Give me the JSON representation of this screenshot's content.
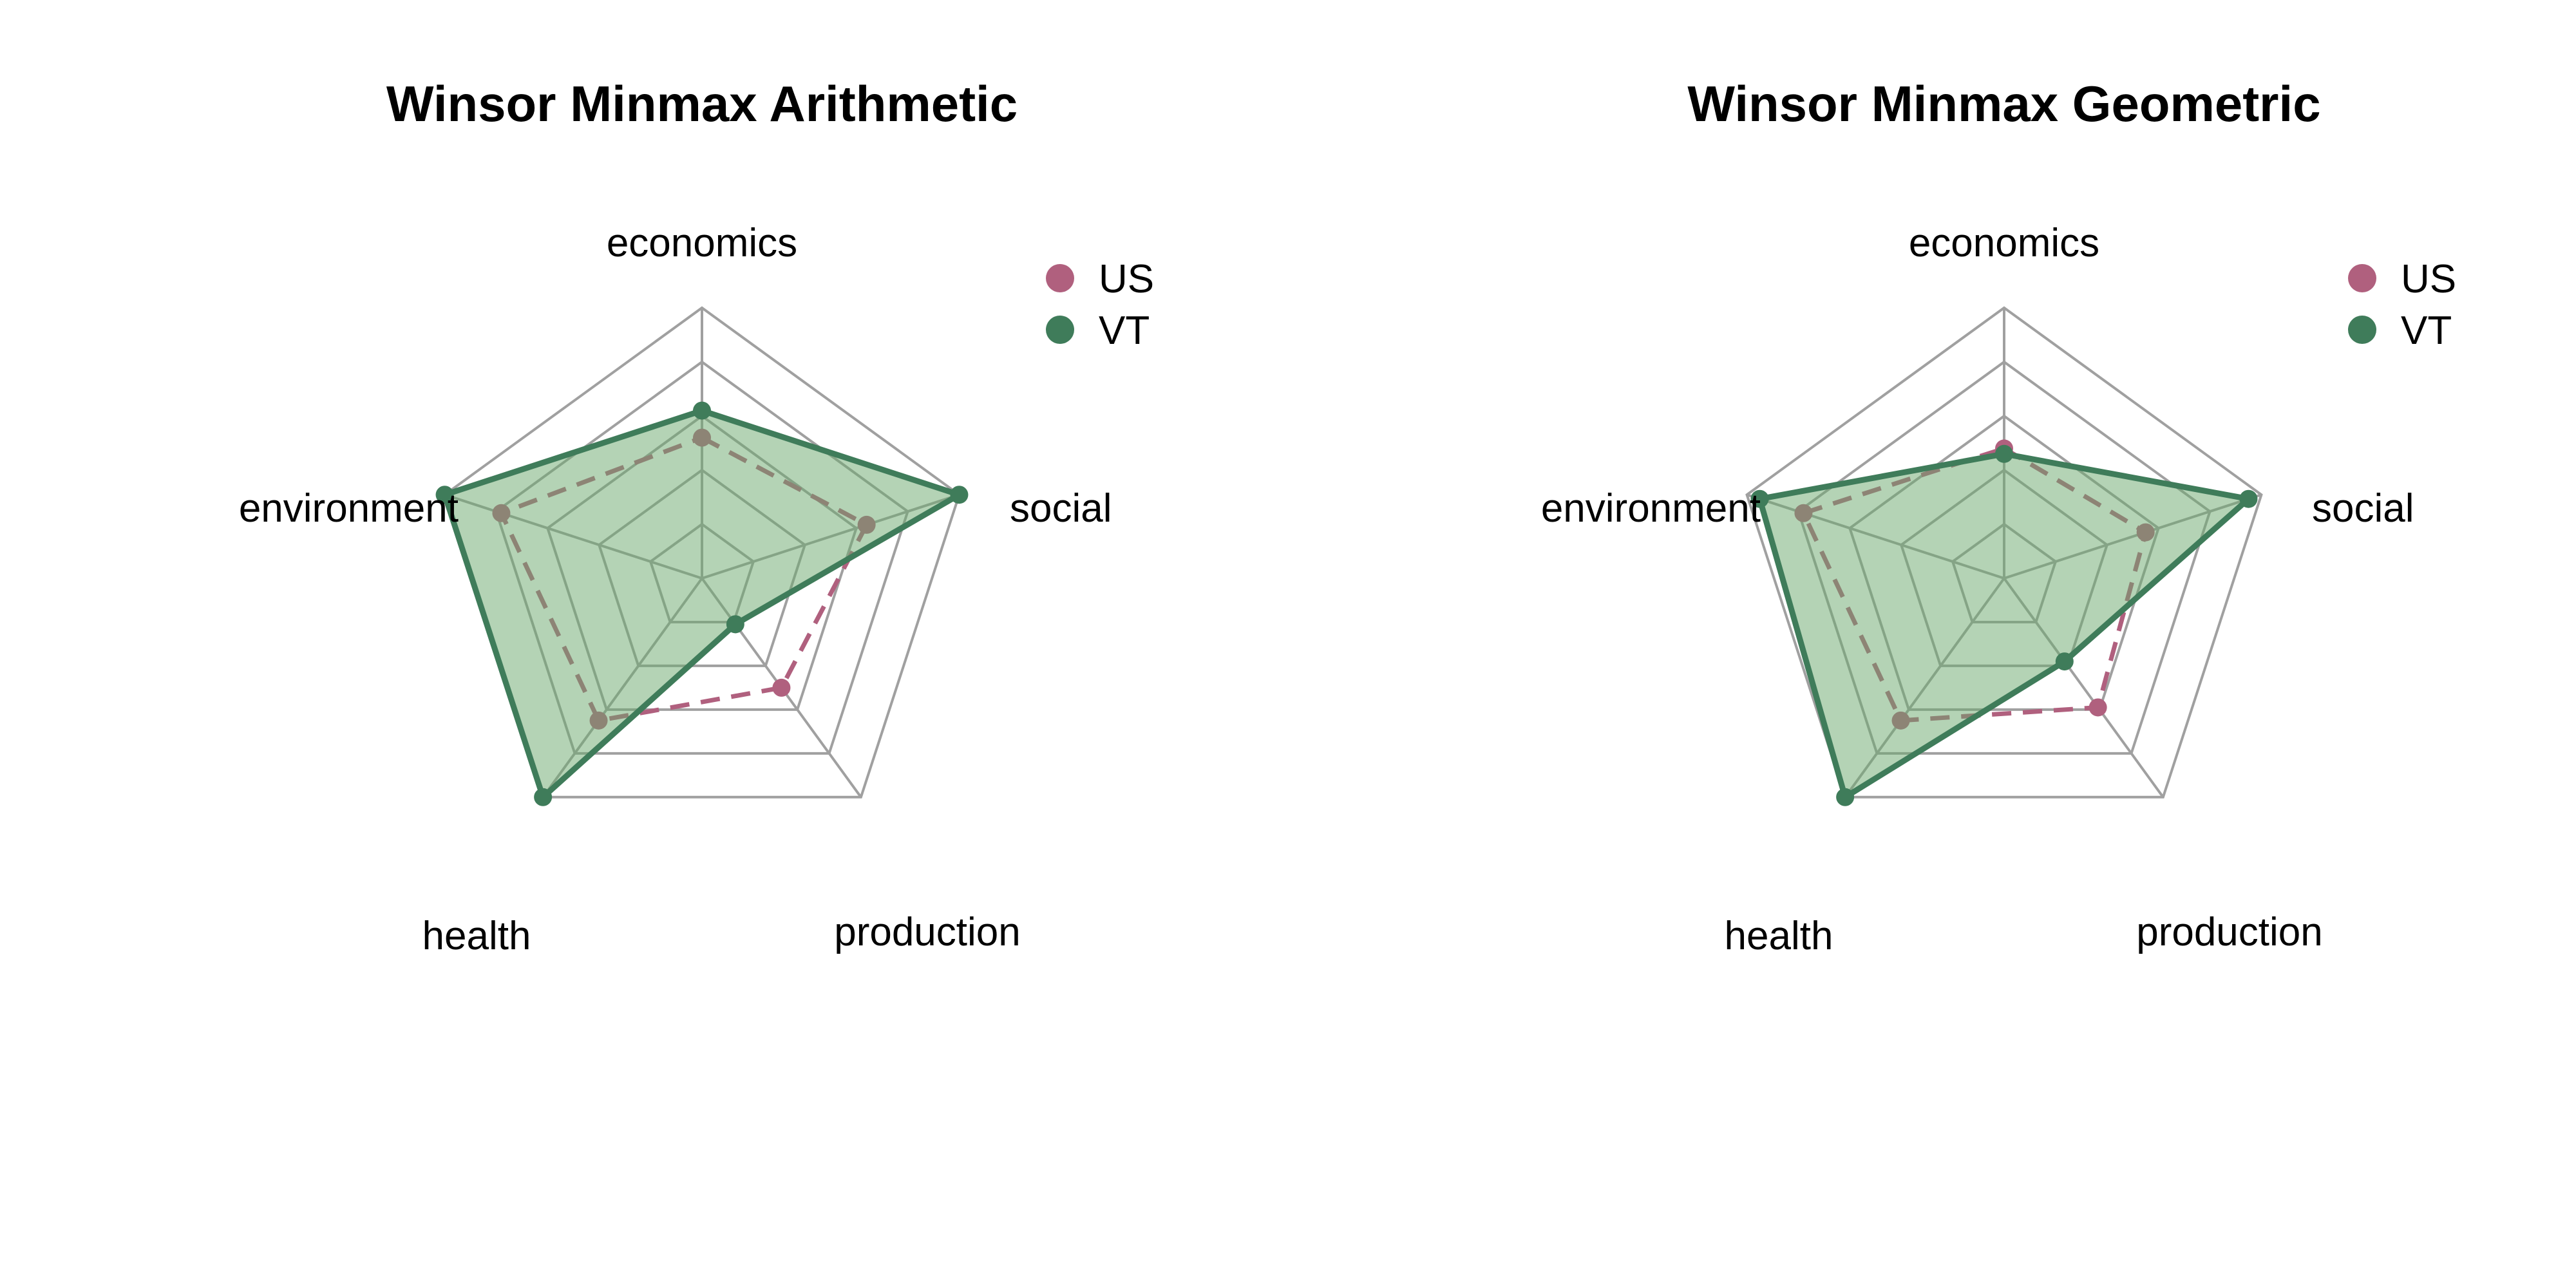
{
  "chart_data": [
    {
      "type": "radar",
      "title": "Winsor Minmax Arithmetic",
      "axes": [
        "economics",
        "social",
        "production",
        "health",
        "environment"
      ],
      "range": [
        0,
        1
      ],
      "grid_levels": 5,
      "grid": true,
      "legend_placement": "top-right",
      "series": [
        {
          "name": "US",
          "color": "#b0607e",
          "line_style": "dashed",
          "filled": false,
          "values": [
            0.52,
            0.64,
            0.5,
            0.65,
            0.78
          ]
        },
        {
          "name": "VT",
          "color": "#3f7c5a",
          "line_style": "solid",
          "filled": true,
          "fill_color": "#6aa76b",
          "values": [
            0.62,
            1.0,
            0.21,
            1.0,
            1.0
          ]
        }
      ]
    },
    {
      "type": "radar",
      "title": "Winsor Minmax Geometric",
      "axes": [
        "economics",
        "social",
        "production",
        "health",
        "environment"
      ],
      "range": [
        0,
        1
      ],
      "grid_levels": 5,
      "grid": true,
      "legend_placement": "top-right",
      "series": [
        {
          "name": "US",
          "color": "#b0607e",
          "line_style": "dashed",
          "filled": false,
          "values": [
            0.48,
            0.55,
            0.59,
            0.65,
            0.78
          ]
        },
        {
          "name": "VT",
          "color": "#3f7c5a",
          "line_style": "solid",
          "filled": true,
          "fill_color": "#6aa76b",
          "values": [
            0.46,
            0.95,
            0.38,
            1.0,
            0.95
          ]
        }
      ]
    }
  ]
}
